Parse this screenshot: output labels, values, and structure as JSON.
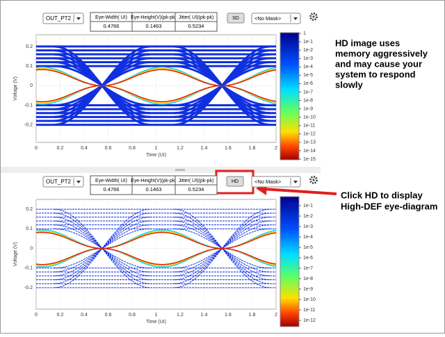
{
  "panels": [
    {
      "channel": "OUT_PT2",
      "headers": [
        "Eye-Width( UI)",
        "Eye-Height(V)(pk-pk)",
        "Jitter( UI)(pk-pk)"
      ],
      "values": [
        0.4766,
        0.1463,
        0.5234
      ],
      "button": "SD",
      "mask": "<No Mask>",
      "x_label": "Time (UI)",
      "y_label": "Voltage (V)",
      "xlim": [
        0,
        2
      ],
      "xticks": [
        0,
        0.2,
        0.4,
        0.6,
        0.8,
        1,
        1.2,
        1.4,
        1.6,
        1.8,
        2
      ],
      "ylim": [
        -0.29,
        0.26
      ],
      "yticks": [
        0.2,
        0.1,
        0,
        -0.1,
        -0.2
      ],
      "colorbar": [
        "1",
        "1e-1",
        "1e-2",
        "1e-3",
        "1e-4",
        "1e-5",
        "1e-6",
        "1e-7",
        "1e-8",
        "1e-9",
        "1e-10",
        "1e-11",
        "1e-12",
        "1e-13",
        "1e-14",
        "1e-15"
      ]
    },
    {
      "channel": "OUT_PT2",
      "headers": [
        "Eye-Width( UI)",
        "Eye-Height(V)(pk-pk)",
        "Jitter( UI)(pk-pk)"
      ],
      "values": [
        0.4766,
        0.1463,
        0.5234
      ],
      "button": "HD",
      "mask": "<No Mask>",
      "x_label": "Time (UI)",
      "y_label": "Voltage (V)",
      "xlim": [
        0,
        2
      ],
      "xticks": [
        0,
        0.2,
        0.4,
        0.6,
        0.8,
        1,
        1.2,
        1.4,
        1.6,
        1.8,
        2
      ],
      "ylim": [
        -0.31,
        0.25
      ],
      "yticks": [
        0.2,
        0.1,
        0,
        -0.1,
        -0.2
      ],
      "colorbar": [
        "1e-1",
        "1e-2",
        "1e-3",
        "1e-4",
        "1e-5",
        "1e-6",
        "1e-7",
        "1e-8",
        "1e-9",
        "1e-10",
        "1e-11",
        "1e-12"
      ]
    }
  ],
  "notes": {
    "top": [
      "HD image uses",
      "memory aggressively",
      "and may cause your",
      "system to respond",
      "slowly"
    ],
    "bottom": [
      "Click HD to display",
      "High-DEF eye-diagram"
    ]
  }
}
